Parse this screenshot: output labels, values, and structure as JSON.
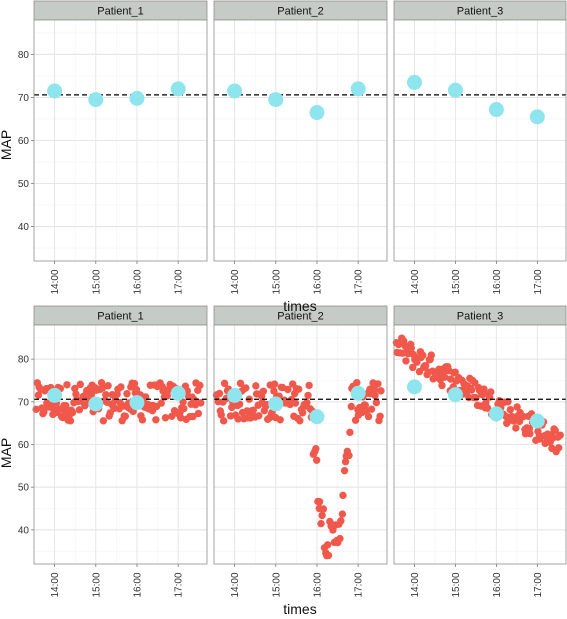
{
  "chart_data": [
    {
      "type": "scatter",
      "panels": [
        "Patient_1",
        "Patient_2",
        "Patient_3"
      ],
      "xlabel": "times",
      "ylabel": "MAP",
      "x_ticks": [
        "14:00",
        "15:00",
        "16:00",
        "17:00"
      ],
      "xlim": [
        13.5,
        17.7
      ],
      "ylim": [
        32,
        88
      ],
      "y_ticks": [
        40,
        50,
        60,
        70,
        80
      ],
      "reference_line": 70.6,
      "grid": true,
      "colors": {
        "hourly": "#8ee5ee",
        "reference": "#000000",
        "strip_bg": "#c7cbc7",
        "panel_border": "#8f8f8f"
      },
      "series": [
        {
          "panel": "Patient_1",
          "x": [
            14,
            15,
            16,
            17
          ],
          "y": [
            71.5,
            69.5,
            69.8,
            72.0
          ]
        },
        {
          "panel": "Patient_2",
          "x": [
            14,
            15,
            16,
            17
          ],
          "y": [
            71.5,
            69.5,
            66.5,
            72.0
          ]
        },
        {
          "panel": "Patient_3",
          "x": [
            14,
            15,
            16,
            17
          ],
          "y": [
            73.5,
            71.7,
            67.2,
            65.5
          ]
        }
      ]
    },
    {
      "type": "scatter",
      "panels": [
        "Patient_1",
        "Patient_2",
        "Patient_3"
      ],
      "xlabel": "times",
      "ylabel": "MAP",
      "x_ticks": [
        "14:00",
        "15:00",
        "16:00",
        "17:00"
      ],
      "xlim": [
        13.5,
        17.7
      ],
      "ylim": [
        32,
        88
      ],
      "y_ticks": [
        40,
        50,
        60,
        70,
        80
      ],
      "reference_line": 70.6,
      "grid": true,
      "colors": {
        "dense": "#f0584c",
        "hourly": "#8ee5ee",
        "reference": "#000000",
        "strip_bg": "#c7cbc7",
        "panel_border": "#8f8f8f"
      },
      "dense_points": {
        "x_range": [
          13.55,
          17.55
        ],
        "count": 150,
        "patient_1": "MAP scattered between 66 and 75 around 70",
        "patient_2": "MAP around 70 except a dip to about 37 between 15:55 and 16:30, recovering near 17:00",
        "patient_3": "MAP declining roughly linearly from about 81 at 13:55 to about 61 at 17:30"
      },
      "series": [
        {
          "panel": "Patient_1",
          "x": [
            14,
            15,
            16,
            17
          ],
          "y": [
            71.5,
            69.5,
            69.8,
            72.0
          ]
        },
        {
          "panel": "Patient_2",
          "x": [
            14,
            15,
            16,
            17
          ],
          "y": [
            71.5,
            69.5,
            66.5,
            72.0
          ]
        },
        {
          "panel": "Patient_3",
          "x": [
            14,
            15,
            16,
            17
          ],
          "y": [
            73.5,
            71.7,
            67.2,
            65.5
          ]
        }
      ]
    }
  ]
}
